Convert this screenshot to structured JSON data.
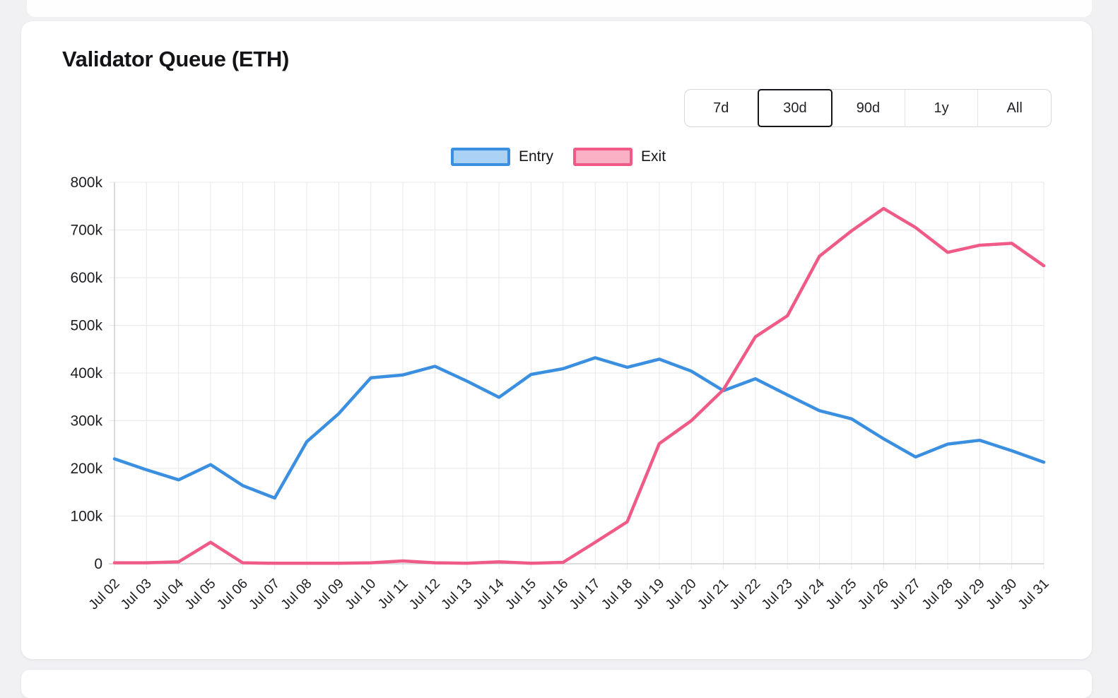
{
  "page_title": "Validator Queue (ETH)",
  "time_range": {
    "options": [
      "7d",
      "30d",
      "90d",
      "1y",
      "All"
    ],
    "selected": "30d"
  },
  "legend": [
    {
      "label": "Entry",
      "color": "#3b8fe0",
      "fill": "#a9d2f4"
    },
    {
      "label": "Exit",
      "color": "#ef5b86",
      "fill": "#fab1c6"
    }
  ],
  "colors": {
    "grid": "#e8e8eb",
    "axis": "#c6c6cb",
    "tick_text": "#202024",
    "card_bg": "#ffffff",
    "page_bg": "#f1f1f4"
  },
  "chart_data": {
    "type": "line",
    "title": "Validator Queue (ETH)",
    "xlabel": "",
    "ylabel": "",
    "grid": true,
    "legend_position": "top",
    "ylim": [
      0,
      800000
    ],
    "yticks": [
      0,
      100000,
      200000,
      300000,
      400000,
      500000,
      600000,
      700000,
      800000
    ],
    "ytick_labels": [
      "0",
      "100k",
      "200k",
      "300k",
      "400k",
      "500k",
      "600k",
      "700k",
      "800k"
    ],
    "x": [
      "Jul 02",
      "Jul 03",
      "Jul 04",
      "Jul 05",
      "Jul 06",
      "Jul 07",
      "Jul 08",
      "Jul 09",
      "Jul 10",
      "Jul 11",
      "Jul 12",
      "Jul 13",
      "Jul 14",
      "Jul 15",
      "Jul 16",
      "Jul 17",
      "Jul 18",
      "Jul 19",
      "Jul 20",
      "Jul 21",
      "Jul 22",
      "Jul 23",
      "Jul 24",
      "Jul 25",
      "Jul 26",
      "Jul 27",
      "Jul 28",
      "Jul 29",
      "Jul 30",
      "Jul 31"
    ],
    "series": [
      {
        "name": "Entry",
        "color": "#3b8fe0",
        "values": [
          220000,
          197000,
          176000,
          208000,
          164000,
          138000,
          256000,
          315000,
          390000,
          396000,
          414000,
          383000,
          349000,
          397000,
          409000,
          432000,
          412000,
          429000,
          404000,
          363000,
          388000,
          354000,
          321000,
          304000,
          262000,
          224000,
          251000,
          259000,
          237000,
          213000
        ]
      },
      {
        "name": "Exit",
        "color": "#ef5b86",
        "values": [
          2000,
          2000,
          4000,
          45000,
          2000,
          1000,
          1000,
          1000,
          2000,
          6000,
          2000,
          1000,
          4000,
          1000,
          3000,
          45000,
          88000,
          252000,
          300000,
          365000,
          476000,
          520000,
          645000,
          698000,
          745000,
          705000,
          653000,
          668000,
          672000,
          625000
        ]
      }
    ]
  }
}
